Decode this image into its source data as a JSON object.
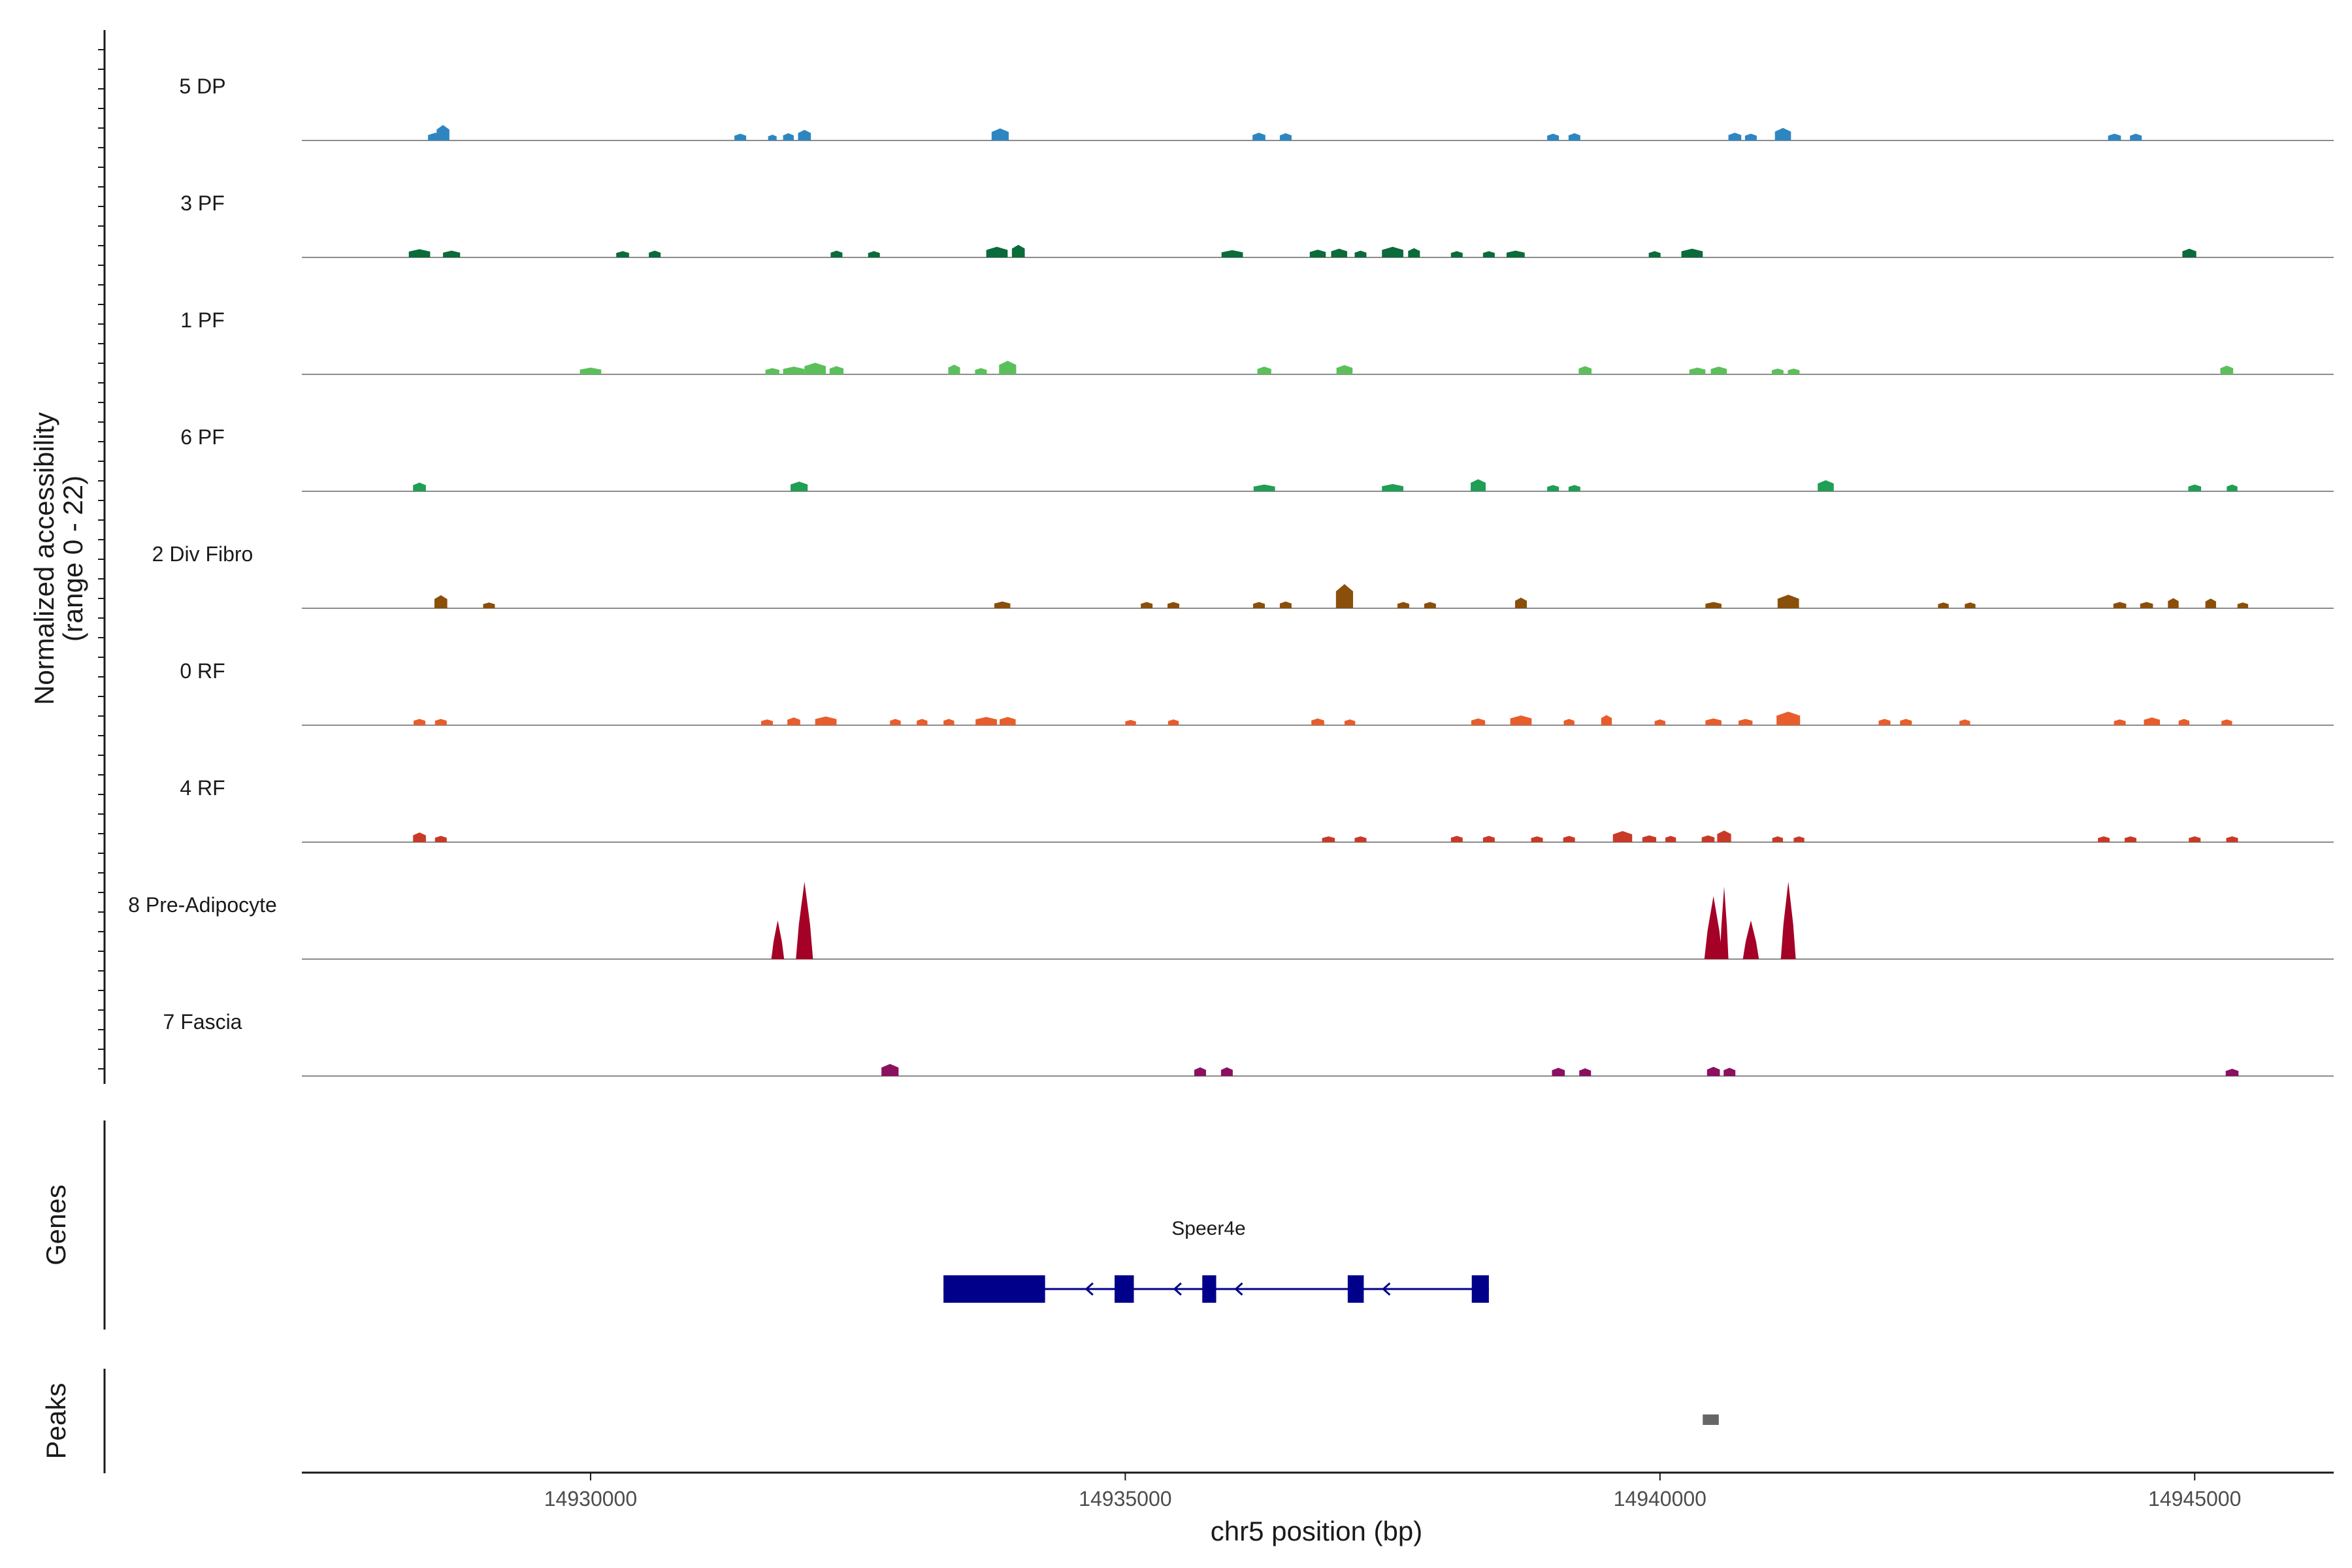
{
  "chart_data": {
    "type": "area",
    "title": "",
    "ylabel": "Normalized accessibility\n(range 0 - 22)",
    "ylim": [
      0,
      22
    ],
    "xlabel": "chr5 position (bp)",
    "xlim": [
      14927300,
      14946300
    ],
    "xticks": [
      14930000,
      14935000,
      14940000,
      14945000
    ],
    "xtick_labels": [
      "14930000",
      "14935000",
      "14940000",
      "14945000"
    ],
    "tracks": [
      {
        "name": "5 DP",
        "color": "#2e86c1",
        "peaks": [
          [
            14928550,
            1.6,
            140
          ],
          [
            14928620,
            3.2,
            120
          ],
          [
            14931400,
            1.4,
            110
          ],
          [
            14931700,
            1.2,
            80
          ],
          [
            14931850,
            1.5,
            100
          ],
          [
            14932000,
            2.2,
            120
          ],
          [
            14933830,
            2.5,
            160
          ],
          [
            14936250,
            1.6,
            120
          ],
          [
            14936500,
            1.5,
            110
          ],
          [
            14939000,
            1.4,
            110
          ],
          [
            14939200,
            1.5,
            110
          ],
          [
            14940700,
            1.6,
            120
          ],
          [
            14940850,
            1.4,
            110
          ],
          [
            14941150,
            2.6,
            150
          ],
          [
            14944250,
            1.4,
            120
          ],
          [
            14944450,
            1.4,
            110
          ]
        ]
      },
      {
        "name": "3 PF",
        "color": "#0b6b3a",
        "peaks": [
          [
            14928400,
            1.7,
            200
          ],
          [
            14928700,
            1.4,
            160
          ],
          [
            14930300,
            1.3,
            120
          ],
          [
            14930600,
            1.4,
            110
          ],
          [
            14932300,
            1.4,
            110
          ],
          [
            14932650,
            1.3,
            110
          ],
          [
            14933800,
            2.2,
            200
          ],
          [
            14934000,
            2.6,
            120
          ],
          [
            14936000,
            1.5,
            200
          ],
          [
            14936800,
            1.6,
            150
          ],
          [
            14937000,
            1.8,
            150
          ],
          [
            14937200,
            1.4,
            110
          ],
          [
            14937500,
            2.2,
            200
          ],
          [
            14937700,
            1.9,
            110
          ],
          [
            14938100,
            1.3,
            110
          ],
          [
            14938400,
            1.3,
            110
          ],
          [
            14938650,
            1.4,
            170
          ],
          [
            14939950,
            1.3,
            110
          ],
          [
            14940300,
            1.8,
            200
          ],
          [
            14944950,
            1.8,
            130
          ]
        ]
      },
      {
        "name": "1 PF",
        "color": "#5cbf5c",
        "peaks": [
          [
            14930000,
            1.4,
            200
          ],
          [
            14931700,
            1.3,
            130
          ],
          [
            14931900,
            1.6,
            200
          ],
          [
            14932100,
            2.4,
            200
          ],
          [
            14932300,
            1.7,
            130
          ],
          [
            14933400,
            2.0,
            110
          ],
          [
            14933650,
            1.3,
            110
          ],
          [
            14933900,
            2.8,
            160
          ],
          [
            14936300,
            1.6,
            130
          ],
          [
            14937050,
            1.9,
            150
          ],
          [
            14939300,
            1.7,
            120
          ],
          [
            14940350,
            1.4,
            150
          ],
          [
            14940550,
            1.6,
            150
          ],
          [
            14941100,
            1.2,
            110
          ],
          [
            14941250,
            1.2,
            110
          ],
          [
            14945300,
            1.8,
            120
          ]
        ]
      },
      {
        "name": "6 PF",
        "color": "#1f9e55",
        "peaks": [
          [
            14928400,
            1.8,
            120
          ],
          [
            14931950,
            2.0,
            160
          ],
          [
            14936300,
            1.4,
            200
          ],
          [
            14937500,
            1.5,
            200
          ],
          [
            14938300,
            2.5,
            140
          ],
          [
            14939000,
            1.3,
            110
          ],
          [
            14939200,
            1.3,
            110
          ],
          [
            14941550,
            2.3,
            150
          ],
          [
            14945000,
            1.4,
            120
          ],
          [
            14945350,
            1.4,
            100
          ]
        ]
      },
      {
        "name": "2 Div Fibro",
        "color": "#8a4f0b",
        "peaks": [
          [
            14928600,
            2.7,
            120
          ],
          [
            14929050,
            1.2,
            110
          ],
          [
            14933850,
            1.4,
            150
          ],
          [
            14935200,
            1.3,
            110
          ],
          [
            14935450,
            1.3,
            110
          ],
          [
            14936250,
            1.3,
            110
          ],
          [
            14936500,
            1.4,
            110
          ],
          [
            14937050,
            5.0,
            160
          ],
          [
            14937600,
            1.3,
            110
          ],
          [
            14937850,
            1.3,
            110
          ],
          [
            14938700,
            2.2,
            110
          ],
          [
            14940500,
            1.3,
            150
          ],
          [
            14941200,
            2.8,
            200
          ],
          [
            14942650,
            1.2,
            100
          ],
          [
            14942900,
            1.2,
            100
          ],
          [
            14944300,
            1.3,
            120
          ],
          [
            14944550,
            1.3,
            120
          ],
          [
            14944800,
            2.1,
            100
          ],
          [
            14945150,
            2.0,
            100
          ],
          [
            14945450,
            1.2,
            100
          ]
        ]
      },
      {
        "name": "0 RF",
        "color": "#e85d2c",
        "peaks": [
          [
            14928400,
            1.3,
            110
          ],
          [
            14928600,
            1.3,
            110
          ],
          [
            14931650,
            1.2,
            110
          ],
          [
            14931900,
            1.6,
            120
          ],
          [
            14932200,
            1.8,
            200
          ],
          [
            14932850,
            1.3,
            100
          ],
          [
            14933100,
            1.3,
            100
          ],
          [
            14933350,
            1.3,
            100
          ],
          [
            14933700,
            1.7,
            200
          ],
          [
            14933900,
            1.7,
            150
          ],
          [
            14935050,
            1.1,
            100
          ],
          [
            14935450,
            1.2,
            100
          ],
          [
            14936800,
            1.4,
            120
          ],
          [
            14937100,
            1.2,
            100
          ],
          [
            14938300,
            1.4,
            130
          ],
          [
            14938700,
            2.0,
            200
          ],
          [
            14939150,
            1.3,
            100
          ],
          [
            14939500,
            2.1,
            100
          ],
          [
            14940000,
            1.2,
            100
          ],
          [
            14940500,
            1.4,
            150
          ],
          [
            14940800,
            1.3,
            130
          ],
          [
            14941200,
            2.8,
            220
          ],
          [
            14942100,
            1.3,
            110
          ],
          [
            14942300,
            1.3,
            110
          ],
          [
            14942850,
            1.2,
            100
          ],
          [
            14944300,
            1.2,
            110
          ],
          [
            14944600,
            1.6,
            150
          ],
          [
            14944900,
            1.3,
            100
          ],
          [
            14945300,
            1.2,
            100
          ]
        ]
      },
      {
        "name": "4 RF",
        "color": "#c83a28",
        "peaks": [
          [
            14928400,
            2.0,
            120
          ],
          [
            14928600,
            1.3,
            110
          ],
          [
            14936900,
            1.2,
            120
          ],
          [
            14937200,
            1.2,
            110
          ],
          [
            14938100,
            1.3,
            110
          ],
          [
            14938400,
            1.3,
            110
          ],
          [
            14938850,
            1.2,
            110
          ],
          [
            14939150,
            1.3,
            110
          ],
          [
            14939650,
            2.3,
            180
          ],
          [
            14939900,
            1.4,
            130
          ],
          [
            14940100,
            1.3,
            100
          ],
          [
            14940450,
            1.4,
            120
          ],
          [
            14940600,
            2.4,
            130
          ],
          [
            14941100,
            1.2,
            100
          ],
          [
            14941300,
            1.2,
            100
          ],
          [
            14944150,
            1.2,
            110
          ],
          [
            14944400,
            1.2,
            110
          ],
          [
            14945000,
            1.2,
            110
          ],
          [
            14945350,
            1.2,
            110
          ]
        ]
      },
      {
        "name": "8 Pre-Adipocyte",
        "color": "#a50026",
        "peaks": [
          [
            14931750,
            8.0,
            120
          ],
          [
            14932000,
            16.0,
            160
          ],
          [
            14940500,
            13.0,
            170
          ],
          [
            14940600,
            15.0,
            80
          ],
          [
            14940850,
            8.0,
            150
          ],
          [
            14941200,
            16.0,
            140
          ]
        ]
      },
      {
        "name": "7 Fascia",
        "color": "#8b1060",
        "peaks": [
          [
            14932800,
            2.5,
            160
          ],
          [
            14935700,
            1.8,
            110
          ],
          [
            14935950,
            1.8,
            110
          ],
          [
            14939050,
            1.7,
            120
          ],
          [
            14939300,
            1.6,
            110
          ],
          [
            14940500,
            1.9,
            120
          ],
          [
            14940650,
            1.7,
            110
          ],
          [
            14945350,
            1.5,
            120
          ]
        ]
      }
    ],
    "genes": {
      "label": "Genes",
      "name": "Speer4e",
      "color": "#00008b",
      "strand": "-",
      "start": 14933300,
      "end": 14938400,
      "exons": [
        [
          14933300,
          14934250
        ],
        [
          14934900,
          14935080
        ],
        [
          14935720,
          14935850
        ],
        [
          14937080,
          14937230
        ],
        [
          14938240,
          14938400
        ]
      ]
    },
    "peaks_track": {
      "label": "Peaks",
      "color": "#666666",
      "regions": [
        [
          14940400,
          14940550
        ]
      ]
    }
  }
}
